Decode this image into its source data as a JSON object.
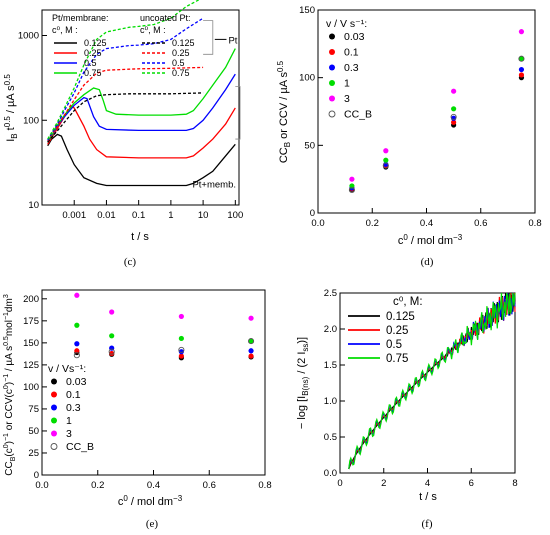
{
  "chart_data": [
    {
      "panel": "(c)",
      "type": "line",
      "xlabel": "t / s",
      "ylabel": "I_B t^0.5 / µA s^0.5",
      "xscale": "log",
      "yscale": "log",
      "xlim": [
        0.0001,
        130
      ],
      "ylim": [
        10,
        2000
      ],
      "xticks": [
        "0.001",
        "0.01",
        "0.1",
        "1",
        "10",
        "100"
      ],
      "yticks": [
        "10",
        "100",
        "1000"
      ],
      "legend_col1_title": "Pt/membrane:",
      "legend_col2_title": "uncoated Pt:",
      "legend_conc_label": "c⁰, M :",
      "annotations": [
        "Pt",
        "Pt+memb."
      ],
      "concentrations": [
        "0.125",
        "0.25",
        "0.5",
        "0.75"
      ],
      "colors": [
        "#000000",
        "#ff0000",
        "#0000ff",
        "#00dd00"
      ],
      "series": [
        {
          "name": "Pt/membrane 0.125",
          "color": "#000000",
          "dash": false,
          "x": [
            0.00015,
            0.0002,
            0.0003,
            0.0004,
            0.0006,
            0.001,
            0.002,
            0.005,
            0.01,
            0.1,
            1,
            3,
            5,
            10,
            20,
            50,
            100
          ],
          "y": [
            50,
            60,
            68,
            65,
            45,
            30,
            21,
            18,
            17,
            17,
            17,
            17,
            18,
            21,
            25,
            38,
            52
          ]
        },
        {
          "name": "Pt/membrane 0.25",
          "color": "#ff0000",
          "dash": false,
          "x": [
            0.00015,
            0.0002,
            0.0003,
            0.0005,
            0.0008,
            0.001,
            0.002,
            0.003,
            0.005,
            0.01,
            0.1,
            1,
            3,
            5,
            10,
            20,
            50,
            100
          ],
          "y": [
            52,
            62,
            80,
            110,
            145,
            140,
            85,
            60,
            45,
            37,
            36,
            36,
            36,
            38,
            47,
            60,
            90,
            140
          ]
        },
        {
          "name": "Pt/membrane 0.5",
          "color": "#0000ff",
          "dash": false,
          "x": [
            0.00015,
            0.0002,
            0.0003,
            0.0005,
            0.001,
            0.002,
            0.0025,
            0.004,
            0.006,
            0.01,
            0.1,
            1,
            3,
            5,
            10,
            20,
            50,
            100
          ],
          "y": [
            55,
            65,
            85,
            110,
            150,
            185,
            180,
            110,
            85,
            78,
            76,
            76,
            76,
            80,
            100,
            140,
            230,
            350
          ]
        },
        {
          "name": "Pt/membrane 0.75",
          "color": "#00dd00",
          "dash": false,
          "x": [
            0.00015,
            0.0002,
            0.0003,
            0.0005,
            0.001,
            0.002,
            0.004,
            0.006,
            0.008,
            0.01,
            0.02,
            0.1,
            1,
            3,
            5,
            10,
            20,
            50,
            100
          ],
          "y": [
            55,
            66,
            88,
            115,
            160,
            200,
            240,
            230,
            170,
            130,
            118,
            115,
            115,
            118,
            130,
            180,
            260,
            420,
            700
          ]
        },
        {
          "name": "uncoated Pt 0.125",
          "color": "#000000",
          "dash": true,
          "x": [
            0.00015,
            0.0002,
            0.0003,
            0.0005,
            0.001,
            0.002,
            0.005,
            0.01,
            0.05,
            0.1,
            1,
            10
          ],
          "y": [
            55,
            63,
            75,
            95,
            130,
            165,
            195,
            200,
            205,
            205,
            205,
            210
          ]
        },
        {
          "name": "uncoated Pt 0.25",
          "color": "#ff0000",
          "dash": true,
          "x": [
            0.00015,
            0.0002,
            0.0003,
            0.0005,
            0.001,
            0.002,
            0.005,
            0.01,
            0.05,
            0.1,
            1,
            10
          ],
          "y": [
            57,
            68,
            85,
            115,
            175,
            260,
            360,
            390,
            400,
            405,
            410,
            420
          ]
        },
        {
          "name": "uncoated Pt 0.5",
          "color": "#0000ff",
          "dash": true,
          "x": [
            0.00015,
            0.0002,
            0.0003,
            0.0005,
            0.001,
            0.002,
            0.005,
            0.01,
            0.05,
            0.1,
            0.3,
            1,
            3,
            10
          ],
          "y": [
            58,
            70,
            90,
            130,
            210,
            370,
            600,
            700,
            760,
            770,
            800,
            900,
            1200,
            1600
          ]
        },
        {
          "name": "uncoated Pt 0.75",
          "color": "#00dd00",
          "dash": true,
          "x": [
            0.00015,
            0.0002,
            0.0003,
            0.0005,
            0.001,
            0.002,
            0.005,
            0.01,
            0.05,
            0.1,
            0.3,
            1,
            3,
            10
          ],
          "y": [
            60,
            72,
            95,
            140,
            240,
            450,
            900,
            1100,
            1250,
            1280,
            1350,
            1600,
            2200,
            2800
          ]
        }
      ]
    },
    {
      "panel": "(d)",
      "type": "scatter",
      "xlabel": "c⁰ / mol dm⁻³",
      "ylabel": "CC_B or CCV / µA s^0.5",
      "xlim": [
        0.0,
        0.8
      ],
      "ylim": [
        0,
        150
      ],
      "xticks": [
        "0.0",
        "0.2",
        "0.4",
        "0.6",
        "0.8"
      ],
      "yticks": [
        "0",
        "50",
        "100",
        "150"
      ],
      "legend_title": "v / V s⁻¹:",
      "x": [
        0.125,
        0.25,
        0.5,
        0.75
      ],
      "series": [
        {
          "name": "0.03",
          "color": "#000000",
          "values": [
            17.5,
            34,
            65,
            100
          ]
        },
        {
          "name": "0.1",
          "color": "#ff0000",
          "values": [
            18,
            35,
            67,
            102
          ]
        },
        {
          "name": "0.3",
          "color": "#0000ff",
          "values": [
            18.5,
            36,
            70,
            106
          ]
        },
        {
          "name": "1",
          "color": "#00dd00",
          "values": [
            20,
            39,
            77,
            114
          ]
        },
        {
          "name": "3",
          "color": "#ff00ff",
          "values": [
            25,
            46,
            90,
            134
          ]
        },
        {
          "name": "CC_B",
          "color": "#555555",
          "open": true,
          "values": [
            17,
            35,
            71,
            114
          ]
        }
      ]
    },
    {
      "panel": "(e)",
      "type": "scatter",
      "xlabel": "c⁰ / mol dm⁻³",
      "ylabel": "CC_B(c⁰)⁻¹ or CCV(c⁰)⁻¹ / µA s^0.5 mol⁻¹ dm³",
      "xlim": [
        0.0,
        0.8
      ],
      "ylim": [
        0,
        210
      ],
      "xticks": [
        "0.0",
        "0.2",
        "0.4",
        "0.6",
        "0.8"
      ],
      "yticks": [
        "0",
        "25",
        "50",
        "75",
        "100",
        "125",
        "150",
        "175",
        "200"
      ],
      "legend_title": "v / Vs⁻¹:",
      "x": [
        0.125,
        0.25,
        0.5,
        0.75
      ],
      "series": [
        {
          "name": "0.03",
          "color": "#000000",
          "values": [
            139,
            137,
            133,
            134
          ]
        },
        {
          "name": "0.1",
          "color": "#ff0000",
          "values": [
            141,
            138,
            135,
            135
          ]
        },
        {
          "name": "0.3",
          "color": "#0000ff",
          "values": [
            149,
            144,
            140,
            141
          ]
        },
        {
          "name": "1",
          "color": "#00dd00",
          "values": [
            170,
            158,
            155,
            152
          ]
        },
        {
          "name": "3",
          "color": "#ff00ff",
          "values": [
            204,
            185,
            180,
            178
          ]
        },
        {
          "name": "CC_B",
          "color": "#555555",
          "open": true,
          "values": [
            136,
            140,
            142,
            152
          ]
        }
      ]
    },
    {
      "panel": "(f)",
      "type": "line",
      "xlabel": "t / s",
      "ylabel": "− log [I_B(ns) / (2 I_ss)]",
      "xlim": [
        0,
        8
      ],
      "ylim": [
        0.0,
        2.5
      ],
      "xticks": [
        "0",
        "2",
        "4",
        "6",
        "8"
      ],
      "yticks": [
        "0.0",
        "0.5",
        "1.0",
        "1.5",
        "2.0",
        "2.5"
      ],
      "legend_title": "c⁰, M:",
      "series": [
        {
          "name": "0.125",
          "color": "#000000"
        },
        {
          "name": "0.25",
          "color": "#ff0000"
        },
        {
          "name": "0.5",
          "color": "#0000ff"
        },
        {
          "name": "0.75",
          "color": "#00dd00"
        }
      ]
    }
  ]
}
